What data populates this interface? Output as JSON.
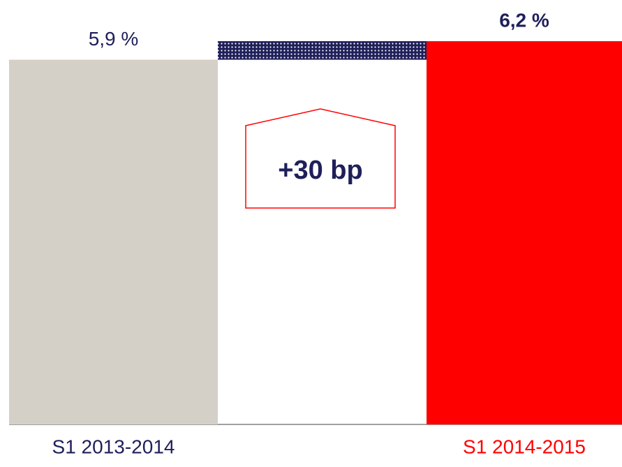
{
  "chart_data": {
    "type": "waterfall",
    "categories": [
      "S1 2013-2014",
      "S1 2014-2015"
    ],
    "values": [
      5.9,
      6.2
    ],
    "value_labels": [
      "5,9 %",
      "6,2 %"
    ],
    "colors": [
      "#d4d0c8",
      "#ff0000"
    ],
    "delta": {
      "value": 0.3,
      "label": "+30 bp"
    },
    "delta_color": "#1f1f5a"
  }
}
